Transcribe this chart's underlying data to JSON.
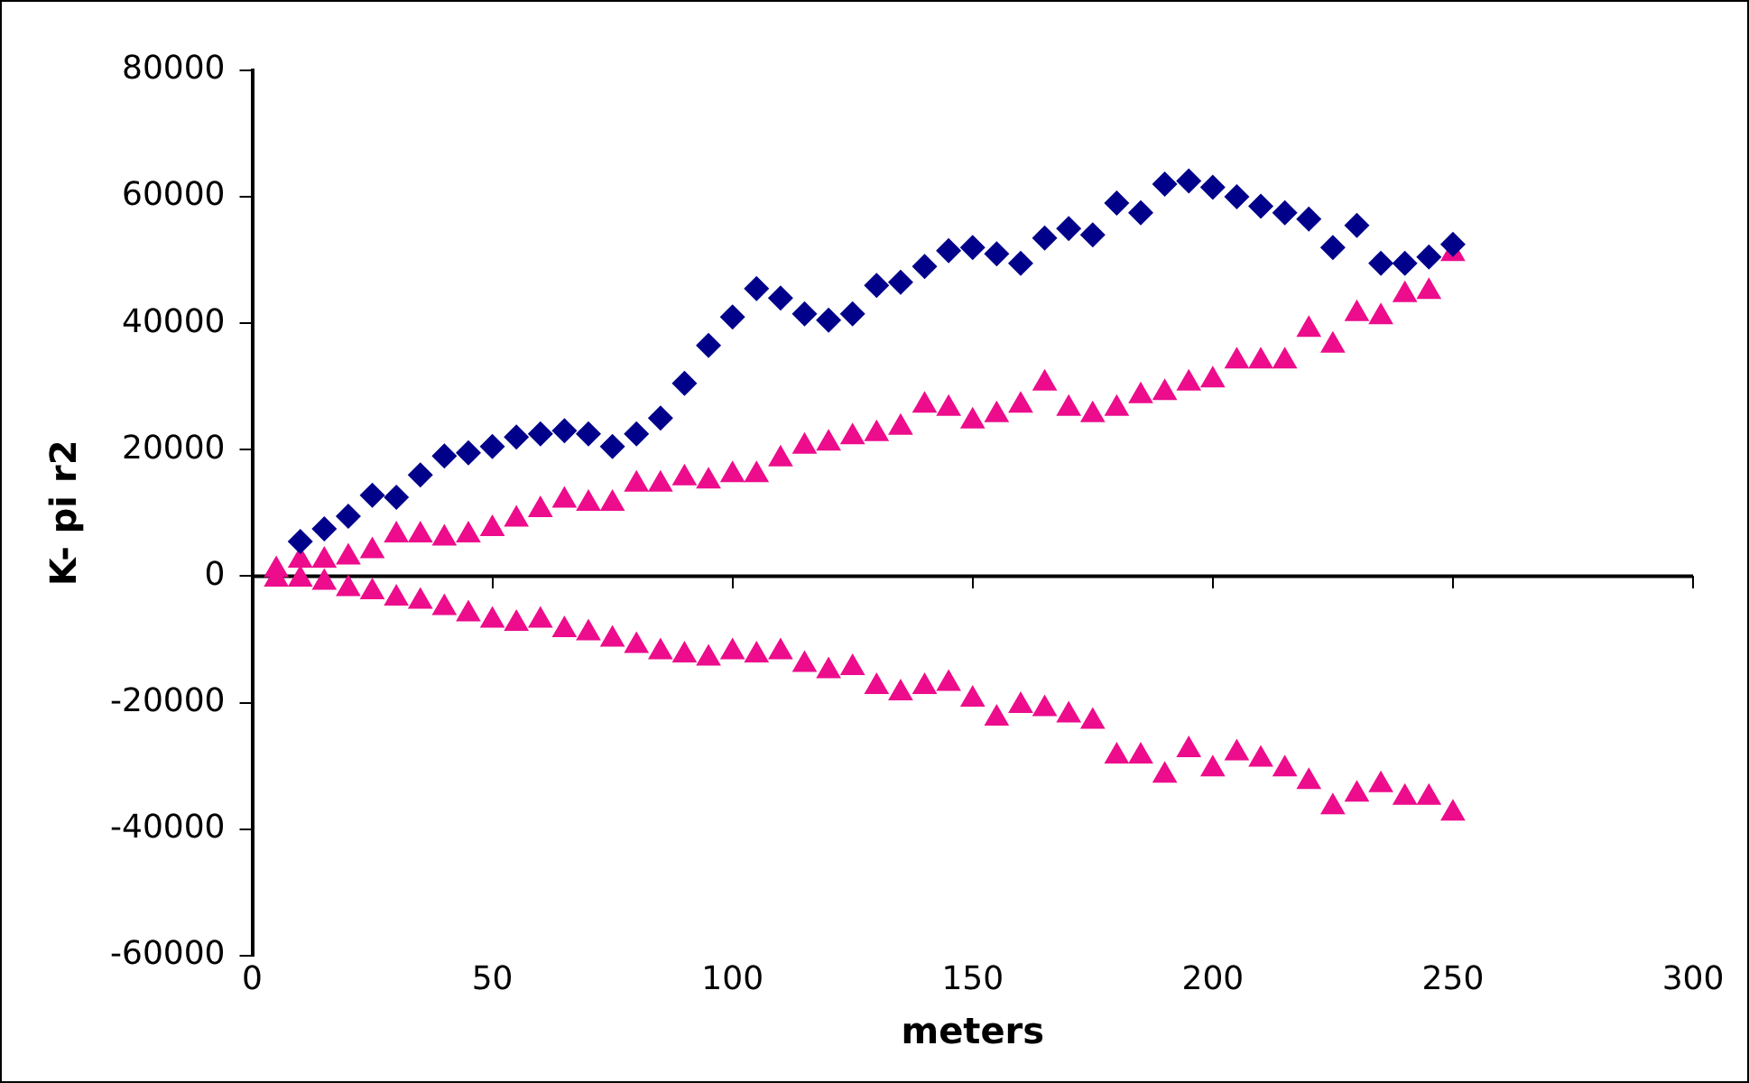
{
  "chart_data": {
    "type": "scatter",
    "xlabel": "meters",
    "ylabel": "K- pi r2",
    "xlim": [
      0,
      300
    ],
    "xticks": [
      0,
      50,
      100,
      150,
      200,
      250,
      300
    ],
    "ylim": [
      -60000,
      80000
    ],
    "yticks": [
      -60000,
      -40000,
      -20000,
      0,
      20000,
      40000,
      60000,
      80000
    ],
    "grid": false,
    "legend": false,
    "ref_lines": [
      {
        "axis": "y",
        "value": 0,
        "color": "#000000"
      }
    ],
    "series": [
      {
        "color": "#00008b",
        "marker": "diamond",
        "x": [
          10,
          15,
          20,
          25,
          30,
          35,
          40,
          45,
          50,
          55,
          60,
          65,
          70,
          75,
          80,
          85,
          90,
          95,
          100,
          105,
          110,
          115,
          120,
          125,
          130,
          135,
          140,
          145,
          150,
          155,
          160,
          165,
          170,
          175,
          180,
          185,
          190,
          195,
          200,
          205,
          210,
          215,
          220,
          225,
          230,
          235,
          240,
          245,
          250
        ],
        "values": [
          5500,
          7500,
          9500,
          12800,
          12500,
          16000,
          19000,
          19500,
          20500,
          22000,
          22500,
          23000,
          22500,
          20500,
          22500,
          25000,
          30500,
          36500,
          41000,
          45500,
          44000,
          41500,
          40500,
          41500,
          46000,
          46500,
          49000,
          51500,
          52000,
          51000,
          49500,
          53500,
          55000,
          54000,
          59000,
          57500,
          62000,
          62500,
          61500,
          60000,
          58500,
          57500,
          56500,
          52000,
          55500,
          49500,
          49500,
          50500,
          52500
        ]
      },
      {
        "color": "#ec0c8c",
        "marker": "triangle",
        "x": [
          5,
          10,
          15,
          20,
          25,
          30,
          35,
          40,
          45,
          50,
          55,
          60,
          65,
          70,
          75,
          80,
          85,
          90,
          95,
          100,
          105,
          110,
          115,
          120,
          125,
          130,
          135,
          140,
          145,
          150,
          155,
          160,
          165,
          170,
          175,
          180,
          185,
          190,
          195,
          200,
          205,
          210,
          215,
          220,
          225,
          230,
          235,
          240,
          245,
          250
        ],
        "values": [
          1000,
          2500,
          2500,
          3000,
          4000,
          6500,
          6500,
          6000,
          6500,
          7500,
          9000,
          10500,
          12000,
          11500,
          11500,
          14500,
          14500,
          15500,
          15000,
          16000,
          16000,
          18500,
          20500,
          21000,
          22000,
          22500,
          23500,
          27000,
          26500,
          24500,
          25500,
          27000,
          30500,
          26500,
          25500,
          26500,
          28500,
          29000,
          30500,
          31000,
          34000,
          34000,
          34000,
          39000,
          36500,
          41500,
          41000,
          44500,
          45000,
          51000
        ]
      },
      {
        "color": "#ec0c8c",
        "marker": "triangle",
        "x": [
          5,
          10,
          15,
          20,
          25,
          30,
          35,
          40,
          45,
          50,
          55,
          60,
          65,
          70,
          75,
          80,
          85,
          90,
          95,
          100,
          105,
          110,
          115,
          120,
          125,
          130,
          135,
          140,
          145,
          150,
          155,
          160,
          165,
          170,
          175,
          180,
          185,
          190,
          195,
          200,
          205,
          210,
          215,
          220,
          225,
          230,
          235,
          240,
          245,
          250
        ],
        "values": [
          -500,
          -500,
          -1000,
          -2000,
          -2500,
          -3500,
          -4000,
          -5000,
          -6000,
          -7000,
          -7500,
          -7000,
          -8500,
          -9000,
          -10000,
          -11000,
          -12000,
          -12500,
          -13000,
          -12000,
          -12500,
          -12000,
          -14000,
          -15000,
          -14500,
          -17500,
          -18500,
          -17500,
          -17000,
          -19500,
          -22500,
          -20500,
          -21000,
          -22000,
          -23000,
          -28500,
          -28500,
          -31500,
          -27500,
          -30500,
          -28000,
          -29000,
          -30500,
          -32500,
          -36500,
          -34500,
          -33000,
          -35000,
          -35000,
          -37500
        ]
      }
    ]
  }
}
